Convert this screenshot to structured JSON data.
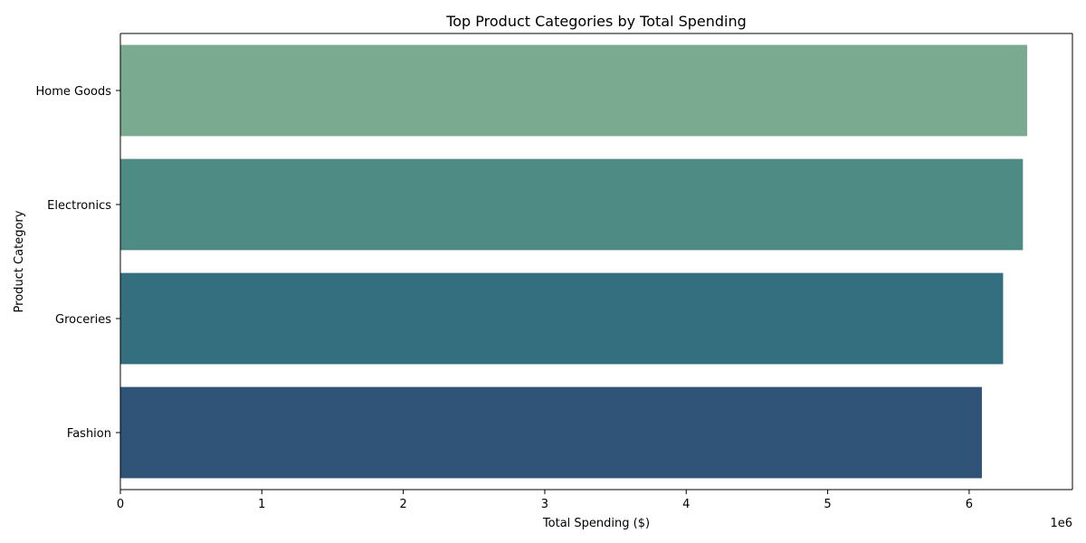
{
  "chart_data": {
    "type": "bar",
    "orientation": "horizontal",
    "title": "Top Product Categories by Total Spending",
    "xlabel": "Total Spending ($)",
    "ylabel": "Product Category",
    "x_offset_label": "1e6",
    "xlim": [
      0,
      6.73
    ],
    "xticks": [
      0,
      1,
      2,
      3,
      4,
      5,
      6
    ],
    "xtick_labels": [
      "0",
      "1",
      "2",
      "3",
      "4",
      "5",
      "6"
    ],
    "grid": false,
    "legend": "none",
    "categories": [
      "Home Goods",
      "Electronics",
      "Groceries",
      "Fashion"
    ],
    "values": [
      6.41,
      6.38,
      6.24,
      6.09
    ],
    "value_unit_multiplier": 1000000,
    "colors": [
      "#7aaa90",
      "#4f8b85",
      "#336f7e",
      "#2f5478"
    ]
  }
}
